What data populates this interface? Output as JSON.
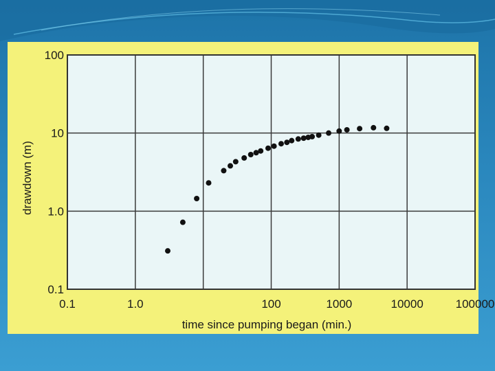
{
  "slide": {
    "background_color": "#2a87bd",
    "panel_color": "#f4f27a",
    "plot_color": "#eaf6f7"
  },
  "chart_data": {
    "type": "scatter",
    "title": "",
    "xlabel": "time since pumping began (min.)",
    "ylabel": "drawdown (m)",
    "xscale": "log",
    "yscale": "log",
    "xlim": [
      0.1,
      100000
    ],
    "ylim": [
      0.1,
      100
    ],
    "x_ticks": [
      0.1,
      1.0,
      100,
      1000,
      10000,
      100000
    ],
    "x_tick_labels": [
      "0.1",
      "1.0",
      "100",
      "1000",
      "10000",
      "100000"
    ],
    "x_gridlines": [
      0.1,
      1,
      10,
      100,
      1000,
      10000,
      100000
    ],
    "y_ticks": [
      0.1,
      1.0,
      10,
      100
    ],
    "y_tick_labels": [
      "0.1",
      "1.0",
      "10",
      "100"
    ],
    "grid": true,
    "legend": "none",
    "marker_color": "#111111",
    "series": [
      {
        "x": [
          3,
          5,
          8,
          12,
          20,
          25,
          30,
          40,
          50,
          60,
          70,
          90,
          110,
          140,
          170,
          200,
          250,
          300,
          350,
          400,
          500,
          700,
          1000,
          1300,
          2000,
          3200,
          5000
        ],
        "y": [
          0.31,
          0.72,
          1.45,
          2.3,
          3.3,
          3.8,
          4.3,
          4.8,
          5.3,
          5.6,
          5.9,
          6.4,
          6.8,
          7.3,
          7.6,
          8.0,
          8.4,
          8.6,
          8.8,
          9.0,
          9.4,
          10.0,
          10.6,
          11.0,
          11.4,
          11.7,
          11.5
        ]
      }
    ]
  }
}
